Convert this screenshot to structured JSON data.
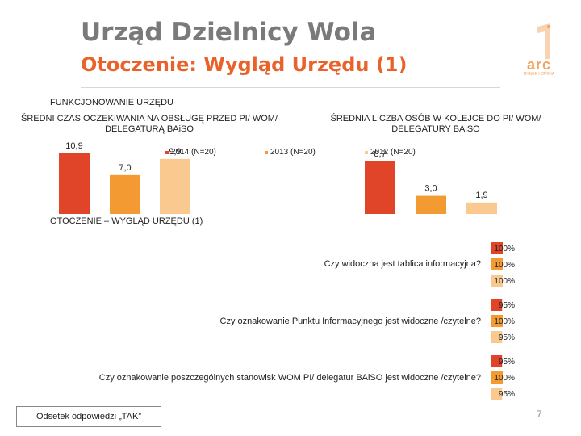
{
  "header": {
    "title": "Urząd Dzielnicy Wola",
    "subtitle": "Otoczenie: Wygląd Urzędu (1)",
    "logo_text": "arc",
    "logo_sub": "RYNEK I OPINIA"
  },
  "section1_label": "FUNKCJONOWANIE URZĘDU",
  "section2_label": "OTOCZENIE – WYGLĄD URZĘDU (1)",
  "legend": [
    {
      "label": "2014 (N=20)",
      "color": "#e0452a"
    },
    {
      "label": "2013 (N=20)",
      "color": "#f39a33"
    },
    {
      "label": "2012 (N=20)",
      "color": "#f9c98f"
    }
  ],
  "colors": {
    "y2014": "#e0452a",
    "y2013": "#f39a33",
    "y2012": "#f9c98f"
  },
  "chart_data": [
    {
      "type": "bar",
      "title": "ŚREDNI CZAS OCZEKIWANIA NA OBSŁUGĘ PRZED PI/ WOM/ DELEGATURĄ BAiSO",
      "categories": [
        "2014 (N=20)",
        "2013 (N=20)",
        "2012 (N=20)"
      ],
      "values": [
        10.9,
        7.0,
        9.9
      ],
      "labels": [
        "10,9",
        "7,0",
        "9,9"
      ],
      "ylim": [
        0,
        12
      ]
    },
    {
      "type": "bar",
      "title": "ŚREDNIA LICZBA OSÓB W KOLEJCE DO PI/ WOM/ DELEGATURY BAiSO",
      "categories": [
        "2014 (N=20)",
        "2013 (N=20)",
        "2012 (N=20)"
      ],
      "values": [
        8.7,
        3.0,
        1.9
      ],
      "labels": [
        "8,7",
        "3,0",
        "1,9"
      ],
      "ylim": [
        0,
        10
      ]
    },
    {
      "type": "bar",
      "orientation": "horizontal",
      "categories": [
        "Czy widoczna jest tablica informacyjna?",
        "Czy oznakowanie Punktu Informacyjnego jest widoczne /czytelne?",
        "Czy oznakowanie poszczególnych stanowisk WOM PI/ delegatur BAiSO jest widoczne /czytelne?"
      ],
      "series": [
        {
          "name": "2014 (N=20)",
          "values": [
            100,
            95,
            95
          ],
          "labels": [
            "100%",
            "95%",
            "95%"
          ]
        },
        {
          "name": "2013 (N=20)",
          "values": [
            100,
            100,
            100
          ],
          "labels": [
            "100%",
            "100%",
            "100%"
          ]
        },
        {
          "name": "2012 (N=20)",
          "values": [
            100,
            95,
            95
          ],
          "labels": [
            "100%",
            "95%",
            "95%"
          ]
        }
      ],
      "xlim": [
        0,
        100
      ]
    }
  ],
  "footer": {
    "note": "Odsetek odpowiedzi „TAK”",
    "page_number": "7"
  }
}
